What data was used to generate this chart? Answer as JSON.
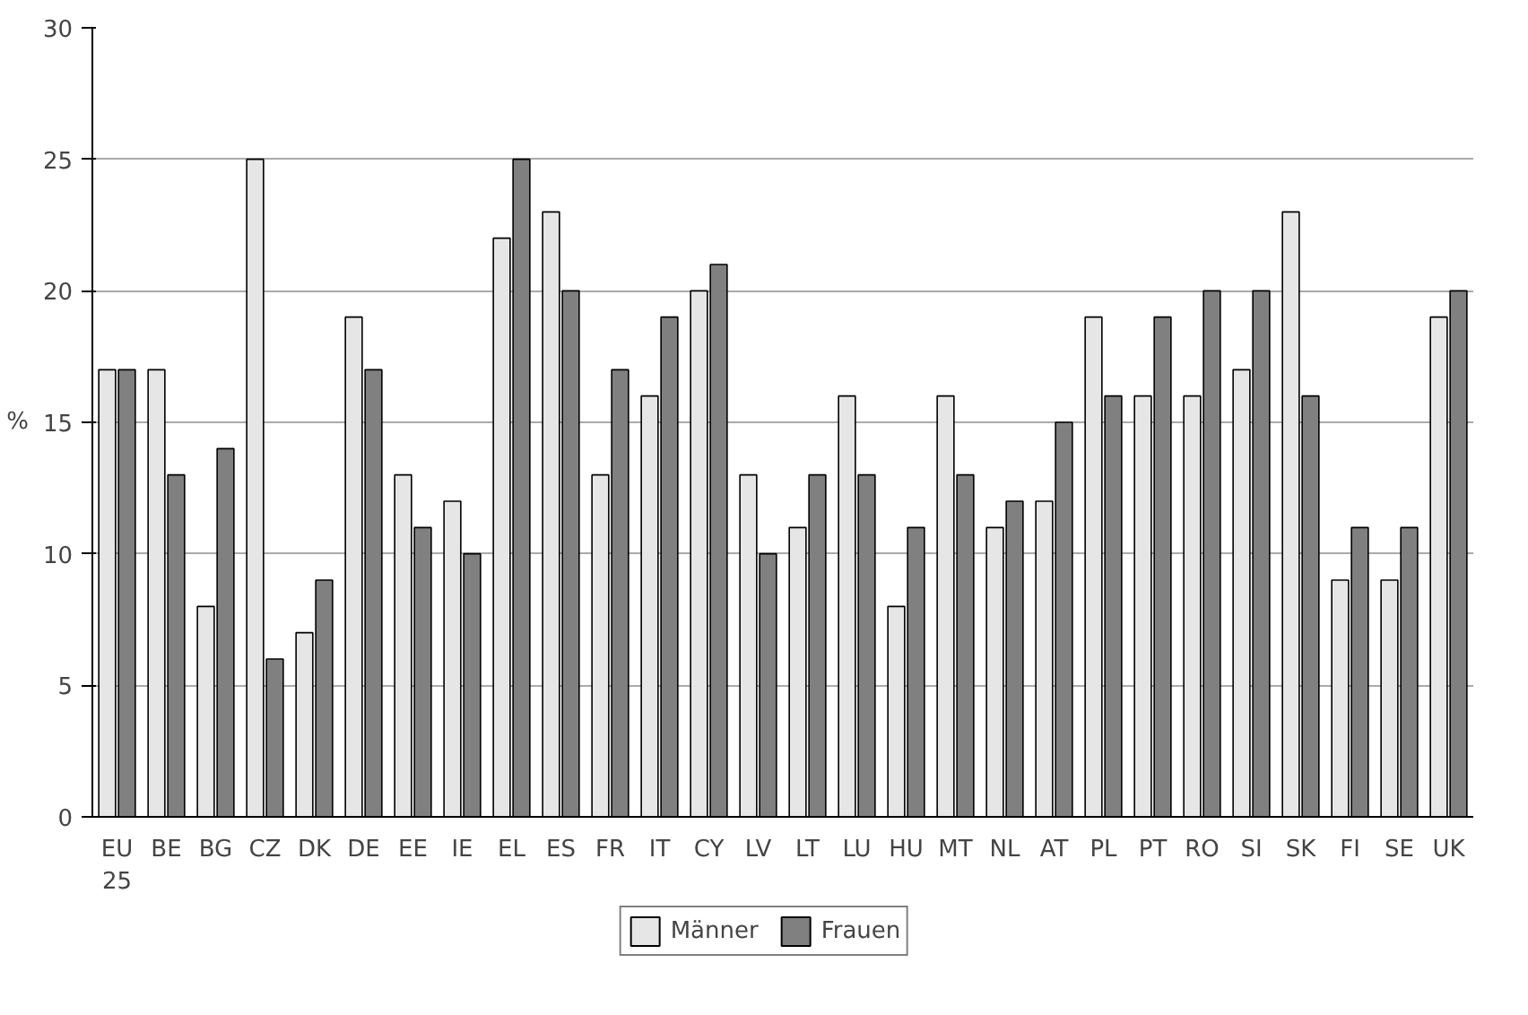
{
  "chart_data": {
    "type": "bar",
    "ylabel": "%",
    "categories": [
      "EU\n25",
      "BE",
      "BG",
      "CZ",
      "DK",
      "DE",
      "EE",
      "IE",
      "EL",
      "ES",
      "FR",
      "IT",
      "CY",
      "LV",
      "LT",
      "LU",
      "HU",
      "MT",
      "NL",
      "AT",
      "PL",
      "PT",
      "RO",
      "SI",
      "SK",
      "FI",
      "SE",
      "UK"
    ],
    "series": [
      {
        "name": "Männer",
        "color": "#e6e6e6",
        "values": [
          17,
          17,
          8,
          25,
          7,
          19,
          13,
          12,
          22,
          23,
          13,
          16,
          20,
          13,
          11,
          16,
          8,
          16,
          11,
          12,
          19,
          16,
          16,
          17,
          23,
          9,
          9,
          19
        ]
      },
      {
        "name": "Frauen",
        "color": "#808080",
        "values": [
          17,
          13,
          14,
          6,
          9,
          17,
          11,
          10,
          25,
          20,
          17,
          19,
          21,
          10,
          13,
          13,
          11,
          13,
          12,
          15,
          16,
          19,
          20,
          20,
          16,
          11,
          11,
          20
        ]
      }
    ],
    "ylim": [
      0,
      30
    ],
    "yticks": [
      0,
      5,
      10,
      15,
      20,
      25,
      30
    ],
    "grid": "y",
    "legend": "bottom"
  }
}
